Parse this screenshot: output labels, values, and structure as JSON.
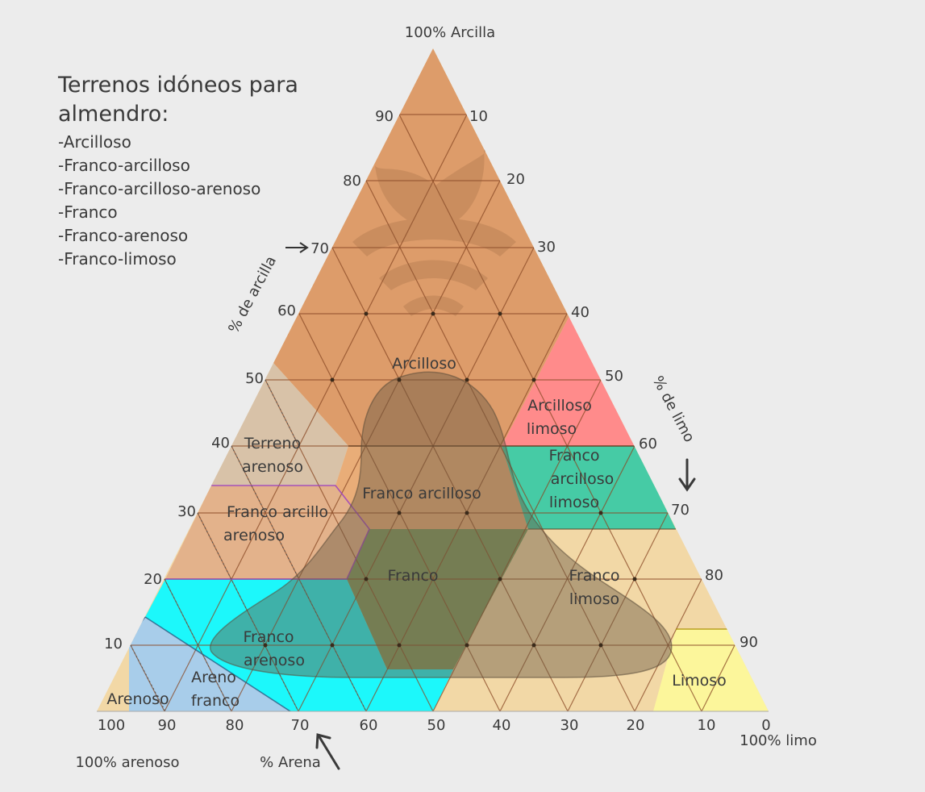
{
  "legend": {
    "title": "Terrenos idóneos para almendro:",
    "items": [
      "-Arcilloso",
      "-Franco-arcilloso",
      "-Franco-arcilloso-arenoso",
      "-Franco",
      "-Franco-arenoso",
      "-Franco-limoso"
    ]
  },
  "corners": {
    "top": "100% Arcilla",
    "right": "100% limo",
    "left": "100% arenoso"
  },
  "axes": {
    "clay": "% de arcilla",
    "silt": "% de limo",
    "sand": "% Arena"
  },
  "ticks": {
    "clay_left": [
      "90",
      "80",
      "70",
      "60",
      "50",
      "40",
      "30",
      "20",
      "10"
    ],
    "silt_right": [
      "10",
      "20",
      "30",
      "40",
      "50",
      "60",
      "70",
      "80",
      "90"
    ],
    "sand_bottom": [
      "100",
      "90",
      "80",
      "70",
      "60",
      "50",
      "40",
      "30",
      "20",
      "10",
      "0"
    ]
  },
  "zones": {
    "arcilloso": "Arcilloso",
    "arcilloso_limoso": [
      "Arcilloso",
      "limoso"
    ],
    "terreno_arenoso": [
      "Terreno",
      "arenoso"
    ],
    "franco_arcilloso": "Franco arcilloso",
    "franco_arcilloso_limoso": [
      "Franco",
      "arcilloso",
      "limoso"
    ],
    "franco_arcillo_arenoso": [
      "Franco arcillo",
      "arenoso"
    ],
    "franco": "Franco",
    "franco_limoso": [
      "Franco",
      "limoso"
    ],
    "franco_arenoso": [
      "Franco",
      "arenoso"
    ],
    "areno_franco": [
      "Areno",
      "franco"
    ],
    "arenoso": "Arenoso",
    "limoso": "Limoso"
  },
  "colors": {
    "background": "#ececec",
    "arcilloso": "#dd9c6a",
    "arcilloso_limoso": "#ff8b8b",
    "terreno_arenoso": "#d8c2a8",
    "franco_arcilloso_limoso": "#46cba5",
    "franco_arcillo_arenoso": "#e3b28b",
    "franco": "#7f9a5f",
    "franco_limoso": "#f2d8a6",
    "franco_arenoso": "#1cf8fb",
    "areno_franco": "#a8cdea",
    "limoso": "#fcf69b",
    "suitable_overlay": "#6b5a45"
  }
}
